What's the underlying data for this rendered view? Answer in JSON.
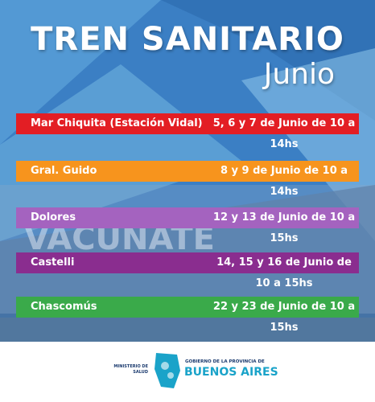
{
  "header": {
    "title": "TREN SANITARIO",
    "subtitle": "Junio"
  },
  "background_text": "VACUNATE",
  "schedule": [
    {
      "place": "Mar Chiquita (Estación Vidal)",
      "dates": "5, 6 y 7 de Junio de 10 a 14hs"
    },
    {
      "place": "Gral. Guido",
      "dates": "8 y 9 de Junio de 10 a 14hs"
    },
    {
      "place": "Dolores",
      "dates": "12 y 13 de Junio de 10 a 15hs"
    },
    {
      "place": "Castelli",
      "dates": "14, 15 y 16 de Junio de 10 a 15hs"
    },
    {
      "place": "Chascomús",
      "dates": "22 y 23 de Junio de 10 a 15hs"
    }
  ],
  "footer": {
    "ministry": [
      "MINISTERIO DE",
      "SALUD"
    ],
    "government_line": "GOBIERNO DE LA PROVINCIA DE",
    "province": "BUENOS AIRES"
  }
}
